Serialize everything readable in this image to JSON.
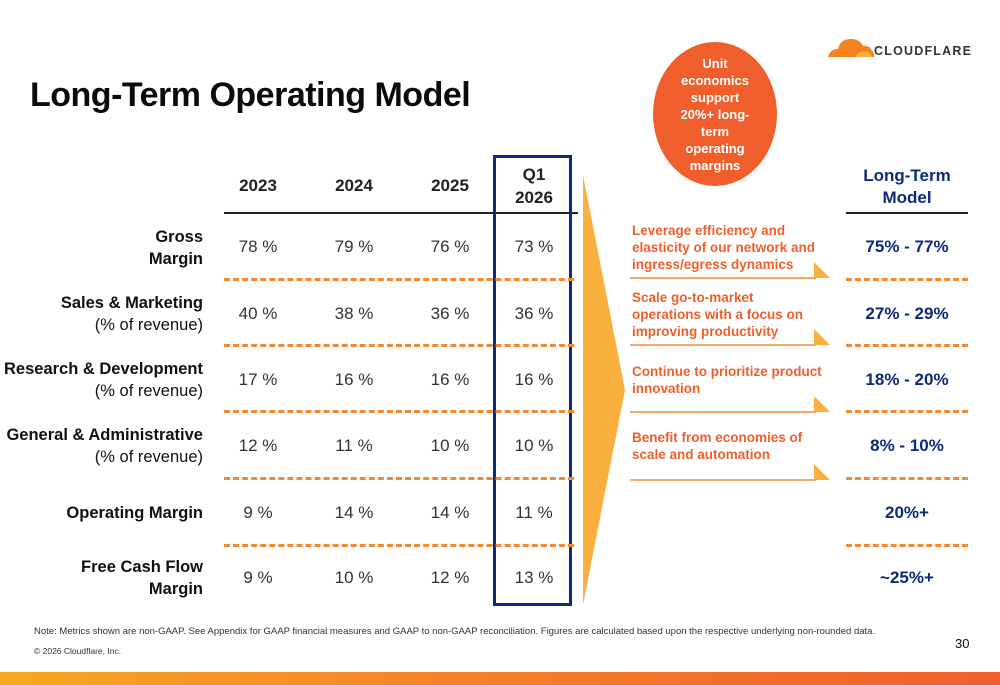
{
  "title": "Long-Term Operating Model",
  "logo_text": "CLOUDFLARE",
  "bubble_text": "Unit economics support 20%+ long-term operating margins",
  "columns": [
    "2023",
    "2024",
    "2025"
  ],
  "q1_header": {
    "line1": "Q1",
    "line2": "2026"
  },
  "rows": [
    {
      "label_bold": "Gross",
      "label_line2": "Margin",
      "line2_bold": true,
      "values": [
        "78 %",
        "79 %",
        "76 %",
        "73 %"
      ]
    },
    {
      "label_bold": "Sales & Marketing",
      "label_line2": "(% of revenue)",
      "line2_bold": false,
      "values": [
        "40 %",
        "38 %",
        "36 %",
        "36 %"
      ]
    },
    {
      "label_bold": "Research & Development",
      "label_line2": "(% of revenue)",
      "line2_bold": false,
      "values": [
        "17 %",
        "16 %",
        "16 %",
        "16 %"
      ]
    },
    {
      "label_bold": "General & Administrative",
      "label_line2": "(% of revenue)",
      "line2_bold": false,
      "values": [
        "12 %",
        "11 %",
        "10 %",
        "10 %"
      ]
    },
    {
      "label_bold": "Operating Margin",
      "label_line2": "",
      "line2_bold": true,
      "values": [
        "9 %",
        "14 %",
        "14 %",
        "11 %"
      ]
    },
    {
      "label_bold": "Free Cash Flow",
      "label_line2": "Margin",
      "line2_bold": true,
      "values": [
        "9 %",
        "10 %",
        "12 %",
        "13 %"
      ]
    }
  ],
  "notes": [
    "Leverage efficiency and elasticity of our network and ingress/egress dynamics",
    "Scale go-to-market operations with a focus on improving productivity",
    "Continue to prioritize product innovation",
    "Benefit from economies of scale and automation"
  ],
  "long_term": {
    "header_line1": "Long-Term",
    "header_line2": "Model",
    "values": [
      "75% - 77%",
      "27% - 29%",
      "18% - 20%",
      "8% - 10%",
      "20%+",
      "~25%+"
    ]
  },
  "footnote": "Note: Metrics shown are non-GAAP. See Appendix for GAAP financial measures and GAAP to non-GAAP reconciliation. Figures are calculated based upon the respective underlying non-rounded data.",
  "copyright": "© 2026 Cloudflare, Inc.",
  "page_number": "30",
  "colors": {
    "orange": "#f05f2b",
    "navy": "#0e2a7a",
    "dash": "#f18a35",
    "arrow": "#f9b03e"
  }
}
